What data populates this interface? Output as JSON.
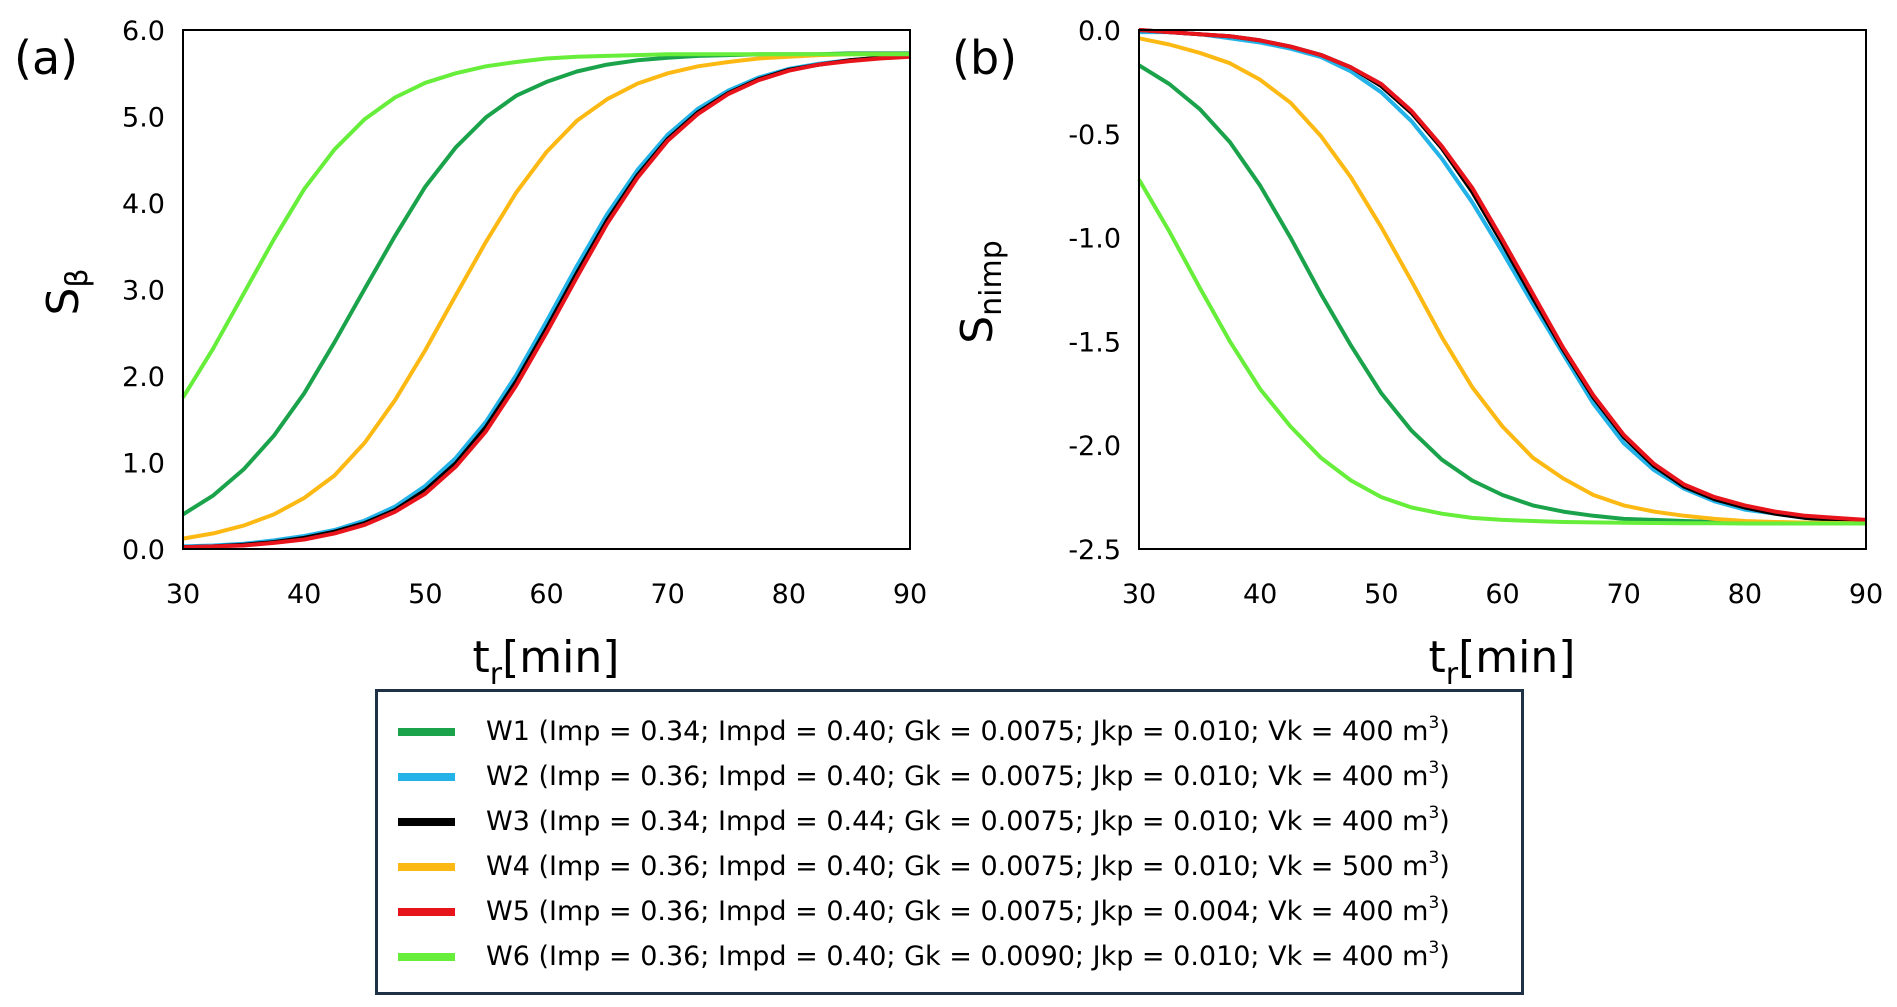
{
  "chart_data": [
    {
      "panel_label": "(a)",
      "type": "line",
      "ylabel_base": "S",
      "ylabel_sub": "β",
      "xlabel_base": "t",
      "xlabel_sub": "r",
      "xlabel_suffix": "[min]",
      "xlim": [
        30,
        90
      ],
      "ylim": [
        0,
        6
      ],
      "xticks": [
        "30",
        "40",
        "50",
        "60",
        "70",
        "80",
        "90"
      ],
      "yticks": [
        "0.0",
        "1.0",
        "2.0",
        "3.0",
        "4.0",
        "5.0",
        "6.0"
      ],
      "x": [
        30,
        32.5,
        35,
        37.5,
        40,
        42.5,
        45,
        47.5,
        50,
        52.5,
        55,
        57.5,
        60,
        62.5,
        65,
        67.5,
        70,
        72.5,
        75,
        77.5,
        80,
        82.5,
        85,
        87.5,
        90
      ],
      "series": [
        {
          "name": "W1",
          "color": "#1aa34a",
          "values": [
            0.4,
            0.62,
            0.92,
            1.31,
            1.8,
            2.39,
            3.01,
            3.62,
            4.19,
            4.64,
            4.99,
            5.24,
            5.4,
            5.52,
            5.6,
            5.65,
            5.68,
            5.7,
            5.71,
            5.72,
            5.72,
            5.72,
            5.73,
            5.73,
            5.73
          ]
        },
        {
          "name": "W2",
          "color": "#23b3e8",
          "values": [
            0.03,
            0.04,
            0.06,
            0.1,
            0.15,
            0.22,
            0.33,
            0.49,
            0.73,
            1.05,
            1.47,
            2.01,
            2.63,
            3.27,
            3.87,
            4.38,
            4.79,
            5.09,
            5.3,
            5.45,
            5.55,
            5.61,
            5.65,
            5.68,
            5.7
          ]
        },
        {
          "name": "W3",
          "color": "#000000",
          "values": [
            0.02,
            0.03,
            0.05,
            0.08,
            0.13,
            0.2,
            0.3,
            0.45,
            0.68,
            0.99,
            1.41,
            1.94,
            2.55,
            3.19,
            3.8,
            4.32,
            4.74,
            5.05,
            5.27,
            5.43,
            5.54,
            5.6,
            5.65,
            5.68,
            5.7
          ]
        },
        {
          "name": "W4",
          "color": "#fdb913",
          "values": [
            0.12,
            0.18,
            0.27,
            0.4,
            0.59,
            0.85,
            1.23,
            1.72,
            2.3,
            2.93,
            3.55,
            4.12,
            4.59,
            4.95,
            5.2,
            5.38,
            5.5,
            5.58,
            5.63,
            5.67,
            5.69,
            5.71,
            5.72,
            5.72,
            5.72
          ]
        },
        {
          "name": "W5",
          "color": "#e8141c",
          "values": [
            0.02,
            0.03,
            0.04,
            0.07,
            0.11,
            0.18,
            0.28,
            0.43,
            0.64,
            0.95,
            1.36,
            1.89,
            2.5,
            3.14,
            3.76,
            4.29,
            4.72,
            5.03,
            5.26,
            5.42,
            5.53,
            5.6,
            5.64,
            5.67,
            5.69
          ]
        },
        {
          "name": "W6",
          "color": "#66ee3a",
          "values": [
            1.75,
            2.32,
            2.95,
            3.58,
            4.16,
            4.62,
            4.97,
            5.22,
            5.39,
            5.5,
            5.58,
            5.63,
            5.67,
            5.69,
            5.7,
            5.71,
            5.72,
            5.72,
            5.72,
            5.72,
            5.72,
            5.72,
            5.72,
            5.72,
            5.72
          ]
        }
      ]
    },
    {
      "panel_label": "(b)",
      "type": "line",
      "ylabel_base": "S",
      "ylabel_sub": "nimp",
      "xlabel_base": "t",
      "xlabel_sub": "r",
      "xlabel_suffix": "[min]",
      "xlim": [
        30,
        90
      ],
      "ylim": [
        -2.5,
        0
      ],
      "xticks": [
        "30",
        "40",
        "50",
        "60",
        "70",
        "80",
        "90"
      ],
      "yticks": [
        "0.0",
        "-0.5",
        "-1.0",
        "-1.5",
        "-2.0",
        "-2.5"
      ],
      "x": [
        30,
        32.5,
        35,
        37.5,
        40,
        42.5,
        45,
        47.5,
        50,
        52.5,
        55,
        57.5,
        60,
        62.5,
        65,
        67.5,
        70,
        72.5,
        75,
        77.5,
        80,
        82.5,
        85,
        87.5,
        90
      ],
      "series": [
        {
          "name": "W1",
          "color": "#1aa34a",
          "values": [
            -0.17,
            -0.26,
            -0.38,
            -0.54,
            -0.75,
            -1.0,
            -1.27,
            -1.52,
            -1.75,
            -1.93,
            -2.07,
            -2.17,
            -2.24,
            -2.29,
            -2.32,
            -2.34,
            -2.355,
            -2.36,
            -2.365,
            -2.37,
            -2.372,
            -2.373,
            -2.374,
            -2.375,
            -2.375
          ]
        },
        {
          "name": "W2",
          "color": "#23b3e8",
          "values": [
            -0.01,
            -0.01,
            -0.02,
            -0.04,
            -0.06,
            -0.09,
            -0.13,
            -0.2,
            -0.3,
            -0.44,
            -0.62,
            -0.83,
            -1.07,
            -1.32,
            -1.56,
            -1.8,
            -1.99,
            -2.12,
            -2.21,
            -2.27,
            -2.31,
            -2.33,
            -2.35,
            -2.36,
            -2.37
          ]
        },
        {
          "name": "W3",
          "color": "#000000",
          "values": [
            0.0,
            -0.01,
            -0.02,
            -0.03,
            -0.05,
            -0.08,
            -0.12,
            -0.18,
            -0.27,
            -0.4,
            -0.57,
            -0.78,
            -1.03,
            -1.29,
            -1.54,
            -1.77,
            -1.96,
            -2.1,
            -2.2,
            -2.26,
            -2.3,
            -2.33,
            -2.35,
            -2.36,
            -2.37
          ]
        },
        {
          "name": "W4",
          "color": "#fdb913",
          "values": [
            -0.04,
            -0.07,
            -0.11,
            -0.16,
            -0.24,
            -0.35,
            -0.51,
            -0.71,
            -0.95,
            -1.21,
            -1.48,
            -1.72,
            -1.91,
            -2.06,
            -2.16,
            -2.24,
            -2.29,
            -2.32,
            -2.34,
            -2.355,
            -2.365,
            -2.37,
            -2.373,
            -2.375,
            -2.376
          ]
        },
        {
          "name": "W5",
          "color": "#e8141c",
          "values": [
            0.0,
            -0.01,
            -0.02,
            -0.03,
            -0.05,
            -0.08,
            -0.12,
            -0.18,
            -0.26,
            -0.39,
            -0.56,
            -0.76,
            -1.01,
            -1.27,
            -1.53,
            -1.76,
            -1.95,
            -2.09,
            -2.19,
            -2.25,
            -2.29,
            -2.32,
            -2.34,
            -2.35,
            -2.36
          ]
        },
        {
          "name": "W6",
          "color": "#66ee3a",
          "values": [
            -0.72,
            -0.97,
            -1.24,
            -1.5,
            -1.73,
            -1.91,
            -2.06,
            -2.17,
            -2.25,
            -2.3,
            -2.33,
            -2.35,
            -2.36,
            -2.365,
            -2.37,
            -2.372,
            -2.374,
            -2.375,
            -2.376,
            -2.376,
            -2.377,
            -2.377,
            -2.377,
            -2.377,
            -2.377
          ]
        }
      ]
    }
  ],
  "legend": [
    {
      "color": "#1aa34a",
      "name": "W1",
      "params": "(Imp = 0.34; Impd = 0.40; Gk = 0.0075; Jkp = 0.010; Vk = 400 m",
      "unit_exp": "3",
      "close": ")"
    },
    {
      "color": "#23b3e8",
      "name": "W2",
      "params": "(Imp = 0.36; Impd = 0.40; Gk = 0.0075; Jkp = 0.010; Vk = 400 m",
      "unit_exp": "3",
      "close": ")"
    },
    {
      "color": "#000000",
      "name": "W3",
      "params": "(Imp = 0.34; Impd = 0.44; Gk = 0.0075; Jkp = 0.010; Vk = 400 m",
      "unit_exp": "3",
      "close": ")"
    },
    {
      "color": "#fdb913",
      "name": "W4",
      "params": "(Imp = 0.36; Impd = 0.40; Gk = 0.0075; Jkp = 0.010; Vk = 500 m",
      "unit_exp": "3",
      "close": ")"
    },
    {
      "color": "#e8141c",
      "name": "W5",
      "params": "(Imp = 0.36; Impd = 0.40; Gk = 0.0075; Jkp = 0.004; Vk = 400 m",
      "unit_exp": "3",
      "close": ")"
    },
    {
      "color": "#66ee3a",
      "name": "W6",
      "params": "(Imp = 0.36; Impd = 0.40; Gk = 0.0090; Jkp = 0.010; Vk = 400 m",
      "unit_exp": "3",
      "close": ")"
    }
  ]
}
